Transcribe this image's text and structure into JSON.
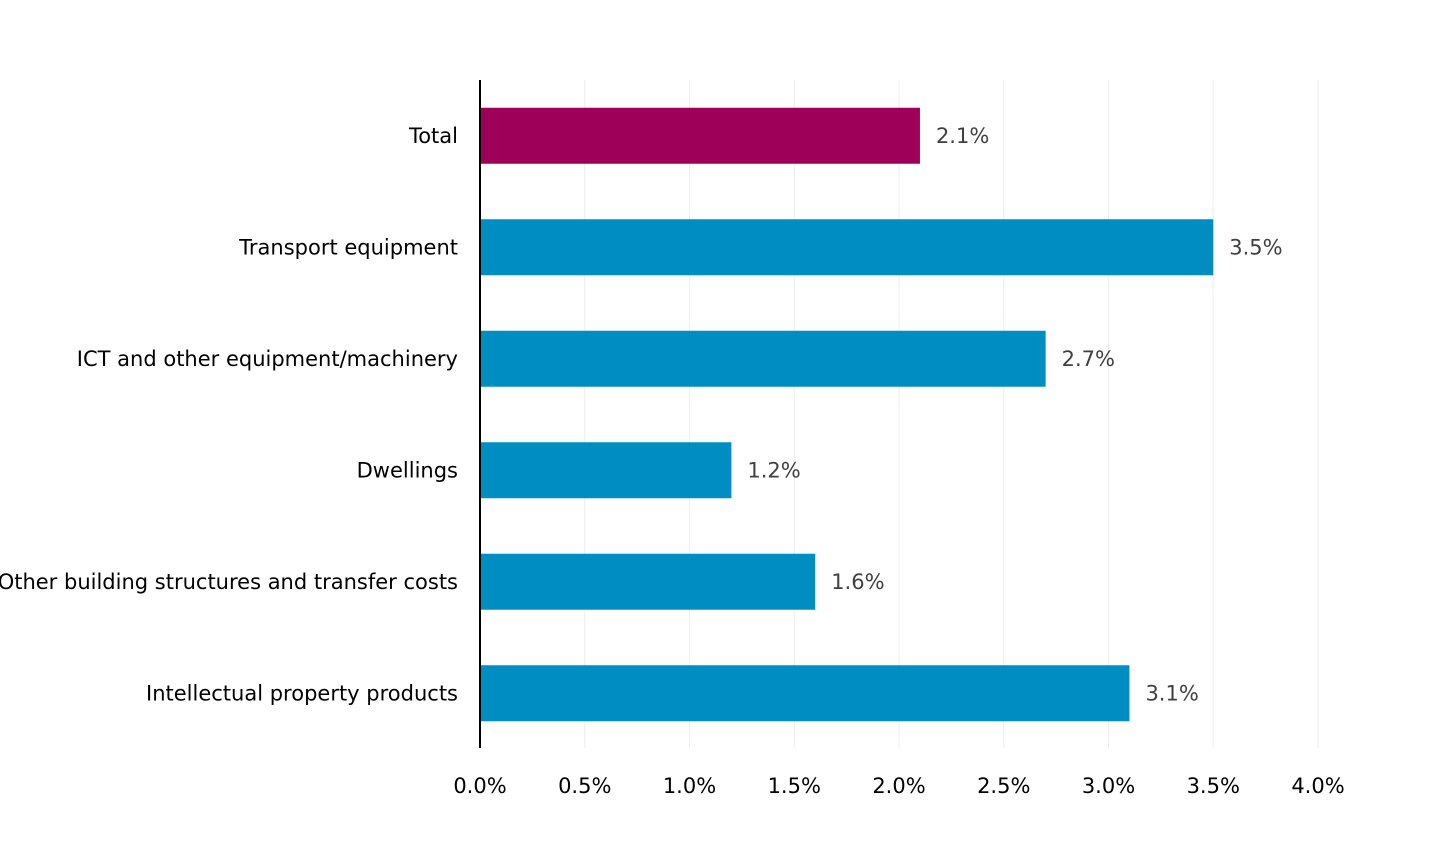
{
  "chart_data": {
    "type": "bar",
    "orientation": "horizontal",
    "categories": [
      "Total",
      "Transport equipment",
      "ICT and other equipment/machinery",
      "Dwellings",
      "Other building structures and transfer costs",
      "Intellectual property products"
    ],
    "values": [
      2.1,
      3.5,
      2.7,
      1.2,
      1.6,
      3.1
    ],
    "value_labels": [
      "2.1%",
      "3.5%",
      "2.7%",
      "1.2%",
      "1.6%",
      "3.1%"
    ],
    "highlight_index": 0,
    "colors": {
      "highlight": "#9E0059",
      "default": "#008DC2",
      "grid": "#EEEEEE",
      "axis": "#000000"
    },
    "xlim": [
      0,
      4.0
    ],
    "xticks": [
      0,
      0.5,
      1.0,
      1.5,
      2.0,
      2.5,
      3.0,
      3.5,
      4.0
    ],
    "xtick_labels": [
      "0.0%",
      "0.5%",
      "1.0%",
      "1.5%",
      "2.0%",
      "2.5%",
      "3.0%",
      "3.5%",
      "4.0%"
    ],
    "grid": true,
    "legend": "none"
  }
}
